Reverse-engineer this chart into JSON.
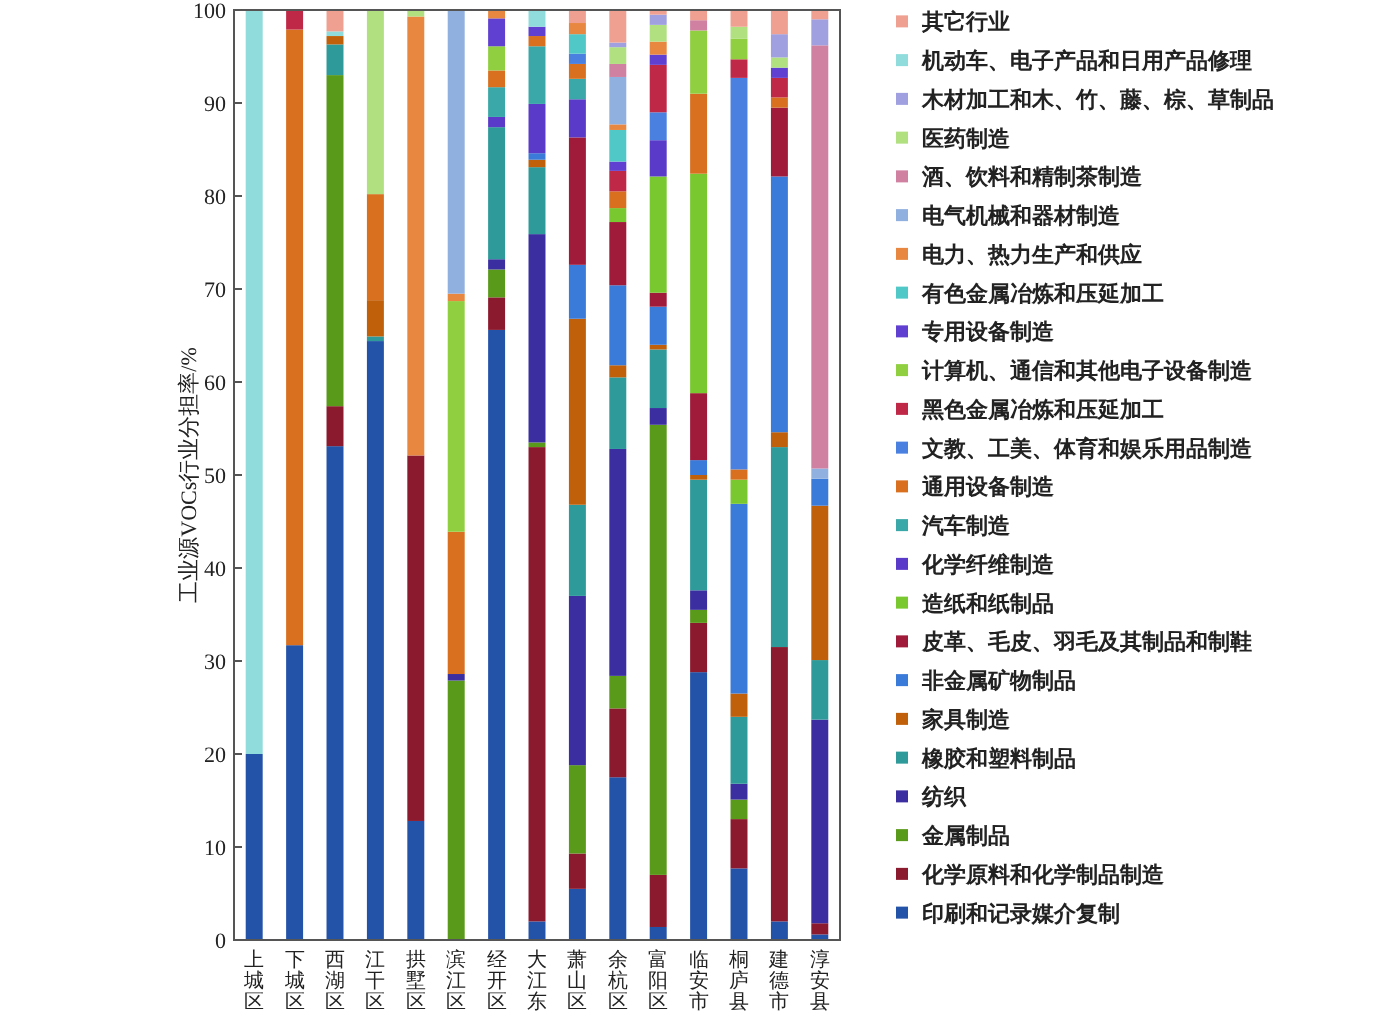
{
  "chart_data": {
    "type": "bar",
    "stacked": true,
    "ylabel": "工业源VOCs行业分担率/%",
    "ylim": [
      0,
      100
    ],
    "yticks": [
      0,
      10,
      20,
      30,
      40,
      50,
      60,
      70,
      80,
      90,
      100
    ],
    "grid": false,
    "legend": "right",
    "categories": [
      "上城区",
      "下城区",
      "西湖区",
      "江干区",
      "拱墅区",
      "滨江区",
      "经开区",
      "大江东",
      "萧山区",
      "余杭区",
      "富阳区",
      "临安市",
      "桐庐县",
      "建德市",
      "淳安县"
    ],
    "series": [
      {
        "name": "印刷和记录媒介复制",
        "color": "#2353a8",
        "values": [
          20,
          31.7,
          53.1,
          64.4,
          12.8,
          null,
          65.6,
          2.0,
          5.5,
          17.5,
          1.4,
          28.8,
          7.7,
          2.0,
          0.6
        ]
      },
      {
        "name": "化学原料和化学制品制造",
        "color": "#8b1a2e",
        "values": [
          null,
          null,
          4.3,
          null,
          39.3,
          null,
          3.5,
          51.0,
          3.8,
          7.4,
          5.6,
          5.3,
          5.3,
          29.5,
          1.2
        ]
      },
      {
        "name": "金属制品",
        "color": "#5a9a1a",
        "values": [
          null,
          null,
          35.6,
          null,
          null,
          27.9,
          3.0,
          0.5,
          9.5,
          3.5,
          48.4,
          1.4,
          2.1,
          null,
          null
        ]
      },
      {
        "name": "纺织",
        "color": "#3a2ea0",
        "values": [
          null,
          null,
          null,
          null,
          null,
          0.7,
          1.1,
          22.4,
          18.2,
          24.4,
          1.8,
          2.1,
          1.7,
          null,
          21.9
        ]
      },
      {
        "name": "橡胶和塑料制品",
        "color": "#2e9a9a",
        "values": [
          null,
          null,
          3.3,
          0.5,
          null,
          null,
          14.2,
          7.2,
          9.8,
          7.7,
          6.3,
          11.9,
          7.2,
          21.5,
          6.4
        ]
      },
      {
        "name": "家具制造",
        "color": "#c0600a",
        "values": [
          null,
          null,
          0.9,
          3.9,
          null,
          null,
          null,
          0.8,
          20.0,
          1.3,
          0.5,
          0.5,
          2.5,
          1.6,
          16.6
        ]
      },
      {
        "name": "非金属矿物制品",
        "color": "#3a7ad8",
        "values": [
          null,
          null,
          null,
          null,
          null,
          null,
          null,
          0.7,
          5.8,
          8.6,
          4.1,
          1.6,
          20.4,
          27.5,
          2.9
        ]
      },
      {
        "name": "皮革、毛皮、羽毛及其制品和制鞋",
        "color": "#a01a3a",
        "values": [
          null,
          null,
          null,
          null,
          null,
          null,
          null,
          null,
          13.7,
          6.8,
          1.5,
          7.2,
          null,
          7.4,
          null
        ]
      },
      {
        "name": "造纸和纸制品",
        "color": "#7ac830",
        "values": [
          null,
          null,
          null,
          null,
          null,
          null,
          null,
          null,
          null,
          1.5,
          12.5,
          23.6,
          2.6,
          null,
          null
        ]
      },
      {
        "name": "化学纤维制造",
        "color": "#5a3ac8",
        "values": [
          null,
          null,
          null,
          null,
          null,
          null,
          1.1,
          5.3,
          4.1,
          null,
          3.9,
          null,
          null,
          null,
          null
        ]
      },
      {
        "name": "汽车制造",
        "color": "#3aa8a8",
        "values": [
          null,
          null,
          null,
          null,
          null,
          null,
          3.2,
          6.2,
          2.2,
          null,
          null,
          null,
          null,
          null,
          null
        ]
      },
      {
        "name": "通用设备制造",
        "color": "#d87020",
        "values": [
          null,
          66.2,
          null,
          11.4,
          null,
          15.3,
          1.8,
          1.1,
          1.6,
          1.8,
          null,
          8.6,
          1.1,
          1.1,
          null
        ]
      },
      {
        "name": "文教、工美、体育和娱乐用品制造",
        "color": "#4a80e0",
        "values": [
          null,
          null,
          null,
          null,
          null,
          null,
          null,
          null,
          1.1,
          null,
          3.0,
          null,
          42.1,
          null,
          null
        ]
      },
      {
        "name": "黑色金属冶炼和压延加工",
        "color": "#c02848",
        "values": [
          null,
          2.1,
          null,
          null,
          null,
          null,
          null,
          null,
          null,
          2.2,
          5.1,
          null,
          2.0,
          2.1,
          null
        ]
      },
      {
        "name": "计算机、通信和其他电子设备制造",
        "color": "#90d040",
        "values": [
          null,
          null,
          null,
          null,
          null,
          24.8,
          2.6,
          null,
          null,
          null,
          null,
          6.8,
          2.2,
          null,
          null
        ]
      },
      {
        "name": "专用设备制造",
        "color": "#6040d0",
        "values": [
          null,
          null,
          null,
          null,
          null,
          null,
          3.0,
          1.0,
          null,
          1.0,
          1.1,
          null,
          null,
          1.1,
          null
        ]
      },
      {
        "name": "有色金属冶炼和压延加工",
        "color": "#50c8c8",
        "values": [
          null,
          null,
          null,
          null,
          null,
          null,
          null,
          null,
          2.1,
          3.4,
          null,
          null,
          null,
          null,
          null
        ]
      },
      {
        "name": "电力、热力生产和供应",
        "color": "#e88840",
        "values": [
          null,
          null,
          null,
          null,
          47.2,
          0.8,
          0.9,
          null,
          1.2,
          0.6,
          1.4,
          null,
          null,
          null,
          null
        ]
      },
      {
        "name": "电气机械和器材制造",
        "color": "#90b0e0",
        "values": [
          null,
          null,
          null,
          null,
          null,
          30.5,
          null,
          null,
          null,
          5.1,
          null,
          null,
          null,
          null,
          1.1
        ]
      },
      {
        "name": "酒、饮料和精制茶制造",
        "color": "#d080a0",
        "values": [
          null,
          null,
          null,
          null,
          null,
          null,
          null,
          null,
          null,
          1.4,
          null,
          1.1,
          null,
          null,
          45.5
        ]
      },
      {
        "name": "医药制造",
        "color": "#b0e080",
        "values": [
          null,
          null,
          null,
          19.8,
          0.7,
          null,
          null,
          null,
          null,
          1.8,
          1.8,
          null,
          1.3,
          1.1,
          null
        ]
      },
      {
        "name": "木材加工和木、竹、藤、棕、草制品",
        "color": "#a0a0e0",
        "values": [
          null,
          null,
          null,
          null,
          null,
          null,
          null,
          null,
          null,
          0.5,
          1.1,
          null,
          null,
          2.5,
          2.8
        ]
      },
      {
        "name": "机动车、电子产品和日用产品修理",
        "color": "#90dcdc",
        "values": [
          80,
          null,
          0.5,
          null,
          null,
          null,
          null,
          1.8,
          null,
          null,
          null,
          null,
          null,
          null,
          null
        ]
      },
      {
        "name": "其它行业",
        "color": "#f0a090",
        "values": [
          null,
          null,
          2.3,
          null,
          null,
          null,
          null,
          null,
          1.4,
          3.5,
          0.5,
          1.1,
          1.8,
          2.6,
          1.0
        ]
      }
    ]
  }
}
